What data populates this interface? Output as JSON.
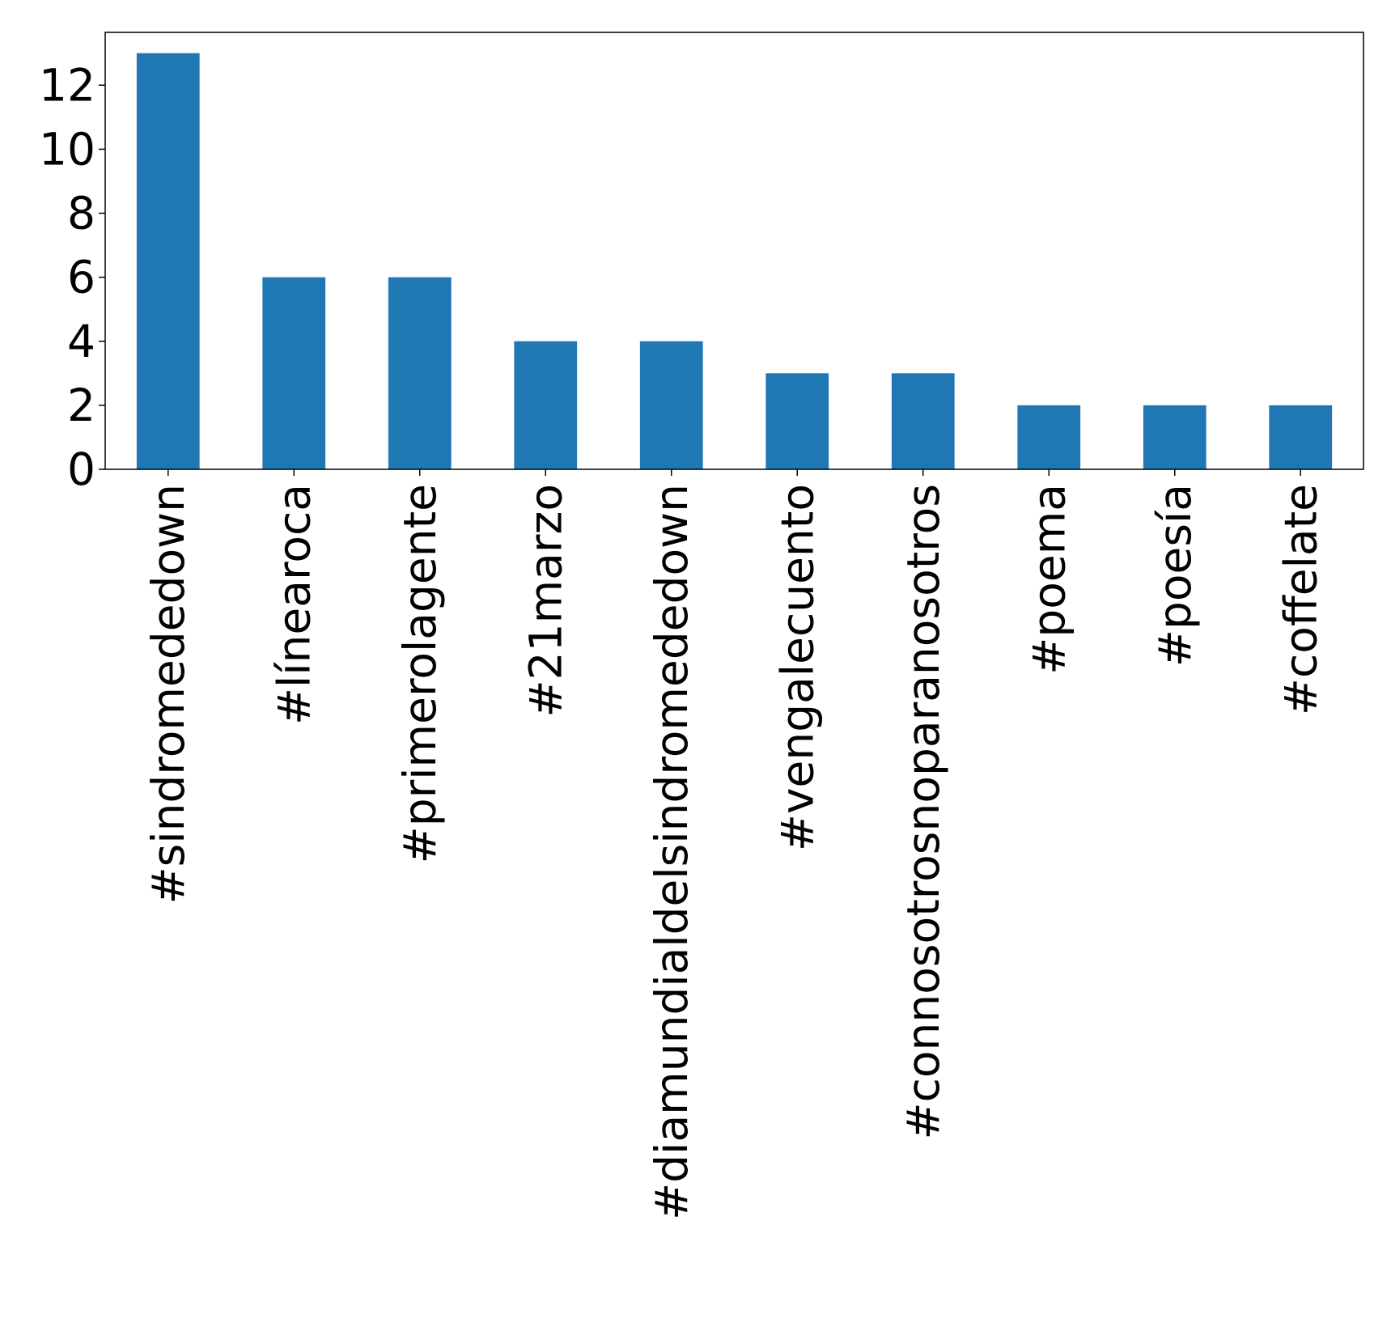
{
  "chart_data": {
    "type": "bar",
    "title": "",
    "xlabel": "",
    "ylabel": "",
    "categories": [
      "#sindromededown",
      "#línearoca",
      "#primerolagente",
      "#21marzo",
      "#diamundialdelsindromededown",
      "#vengalecuento",
      "#connosotrosnoparanosotros",
      "#poema",
      "#poesía",
      "#coffelate"
    ],
    "values": [
      13,
      6,
      6,
      4,
      4,
      3,
      3,
      2,
      2,
      2
    ],
    "ylim": [
      0,
      13.65
    ],
    "yticks": [
      0,
      2,
      4,
      6,
      8,
      10,
      12
    ],
    "grid": false,
    "legend": "none",
    "bar_color": "#1f77b4"
  }
}
